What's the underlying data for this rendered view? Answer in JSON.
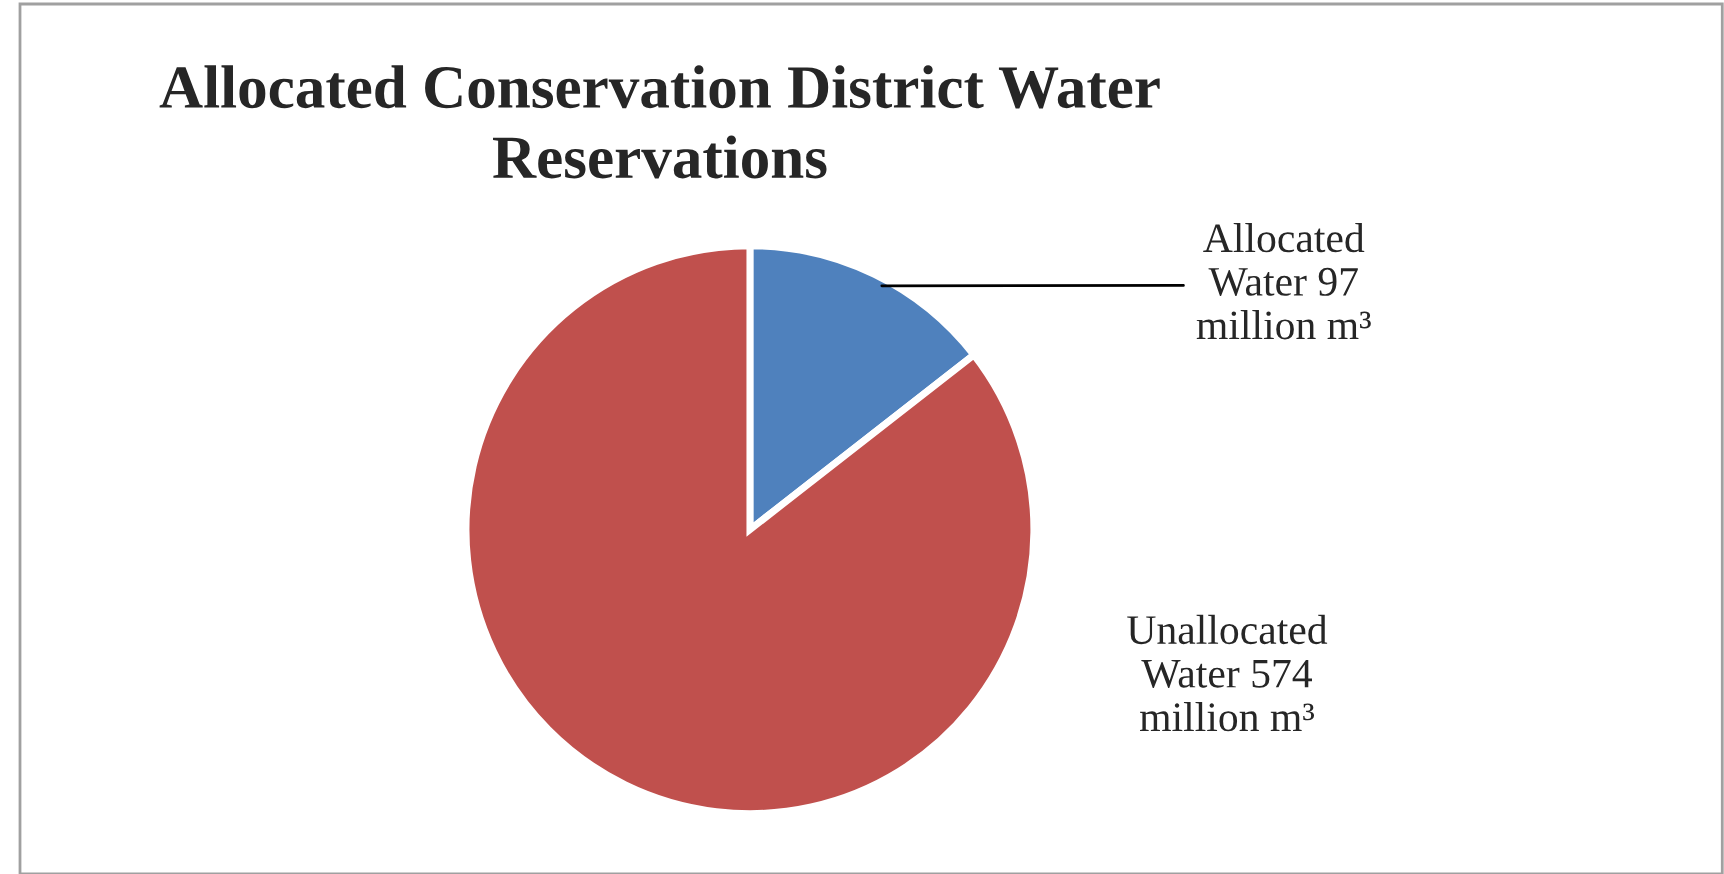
{
  "chart_data": {
    "type": "pie",
    "title": "Allocated Conservation District Water\nReservations",
    "categories": [
      "Allocated Water",
      "Unallocated Water"
    ],
    "values": [
      97,
      574
    ],
    "value_labels": [
      "97 million m³",
      "574 million m³"
    ],
    "colors": [
      "#4f81bd",
      "#c0504d"
    ]
  }
}
